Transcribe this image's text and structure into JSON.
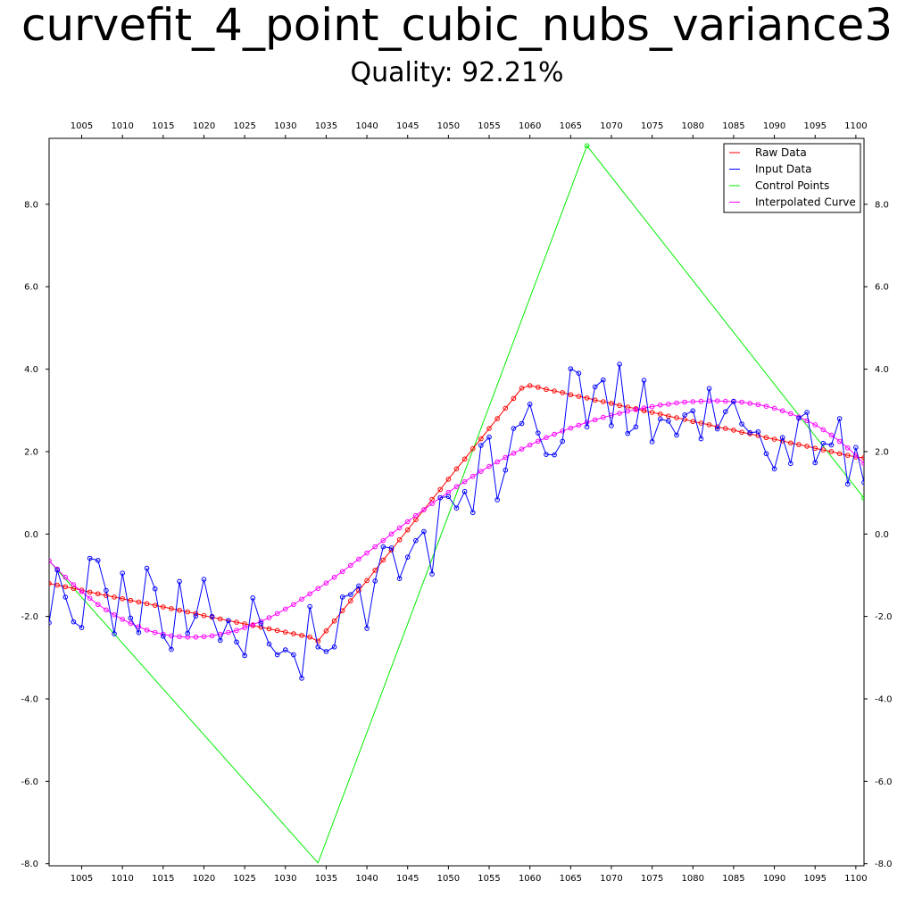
{
  "chart_data": {
    "type": "line",
    "title": "curvefit_4_point_cubic_nubs_variance3",
    "subtitle": "Quality: 92.21%",
    "xlim": [
      1001,
      1101
    ],
    "ylim": [
      -8.05,
      9.6
    ],
    "x_ticks": [
      1005,
      1010,
      1015,
      1020,
      1025,
      1030,
      1035,
      1040,
      1045,
      1050,
      1055,
      1060,
      1065,
      1070,
      1075,
      1080,
      1085,
      1090,
      1095,
      1100
    ],
    "y_ticks": [
      8.0,
      6.0,
      4.0,
      2.0,
      0.0,
      -2.0,
      -4.0,
      -6.0,
      -8.0
    ],
    "y_tick_labels": [
      "8.0",
      "6.0",
      "4.0",
      "2.0",
      "0.0",
      "-2.0",
      "-4.0",
      "-6.0",
      "-8.0"
    ],
    "grid": false,
    "legend_position": "top-right",
    "series": [
      {
        "name": "Raw Data",
        "color": "#ff0000",
        "markers": true,
        "x": [
          1001,
          1002,
          1003,
          1004,
          1005,
          1006,
          1007,
          1008,
          1009,
          1010,
          1011,
          1012,
          1013,
          1014,
          1015,
          1016,
          1017,
          1018,
          1019,
          1020,
          1021,
          1022,
          1023,
          1024,
          1025,
          1026,
          1027,
          1028,
          1029,
          1030,
          1031,
          1032,
          1033,
          1034,
          1035,
          1036,
          1037,
          1038,
          1039,
          1040,
          1041,
          1042,
          1043,
          1044,
          1045,
          1046,
          1047,
          1048,
          1049,
          1050,
          1051,
          1052,
          1053,
          1054,
          1055,
          1056,
          1057,
          1058,
          1059,
          1060,
          1061,
          1062,
          1063,
          1064,
          1065,
          1066,
          1067,
          1068,
          1069,
          1070,
          1071,
          1072,
          1073,
          1074,
          1075,
          1076,
          1077,
          1078,
          1079,
          1080,
          1081,
          1082,
          1083,
          1084,
          1085,
          1086,
          1087,
          1088,
          1089,
          1090,
          1091,
          1092,
          1093,
          1094,
          1095,
          1096,
          1097,
          1098,
          1099,
          1100,
          1101
        ],
        "y": [
          -1.2,
          -1.24,
          -1.28,
          -1.32,
          -1.36,
          -1.41,
          -1.45,
          -1.49,
          -1.53,
          -1.57,
          -1.61,
          -1.65,
          -1.69,
          -1.73,
          -1.77,
          -1.81,
          -1.85,
          -1.89,
          -1.93,
          -1.98,
          -2.02,
          -2.06,
          -2.1,
          -2.14,
          -2.18,
          -2.22,
          -2.26,
          -2.3,
          -2.34,
          -2.38,
          -2.42,
          -2.46,
          -2.5,
          -2.6,
          -2.35,
          -2.11,
          -1.86,
          -1.62,
          -1.37,
          -1.13,
          -0.88,
          -0.63,
          -0.39,
          -0.14,
          0.1,
          0.35,
          0.59,
          0.84,
          1.08,
          1.33,
          1.58,
          1.82,
          2.07,
          2.31,
          2.56,
          2.8,
          3.05,
          3.29,
          3.54,
          3.6,
          3.56,
          3.51,
          3.47,
          3.43,
          3.38,
          3.34,
          3.3,
          3.25,
          3.21,
          3.17,
          3.12,
          3.08,
          3.04,
          2.99,
          2.95,
          2.91,
          2.86,
          2.82,
          2.78,
          2.73,
          2.69,
          2.65,
          2.6,
          2.56,
          2.52,
          2.47,
          2.43,
          2.39,
          2.34,
          2.3,
          2.26,
          2.21,
          2.17,
          2.13,
          2.08,
          2.04,
          2.0,
          1.95,
          1.91,
          1.87,
          1.85
        ]
      },
      {
        "name": "Input Data",
        "color": "#0000ff",
        "markers": true,
        "x": [
          1001,
          1002,
          1003,
          1004,
          1005,
          1006,
          1007,
          1008,
          1009,
          1010,
          1011,
          1012,
          1013,
          1014,
          1015,
          1016,
          1017,
          1018,
          1019,
          1020,
          1021,
          1022,
          1023,
          1024,
          1025,
          1026,
          1027,
          1028,
          1029,
          1030,
          1031,
          1032,
          1033,
          1034,
          1035,
          1036,
          1037,
          1038,
          1039,
          1040,
          1041,
          1042,
          1043,
          1044,
          1045,
          1046,
          1047,
          1048,
          1049,
          1050,
          1051,
          1052,
          1053,
          1054,
          1055,
          1056,
          1057,
          1058,
          1059,
          1060,
          1061,
          1062,
          1063,
          1064,
          1065,
          1066,
          1067,
          1068,
          1069,
          1070,
          1071,
          1072,
          1073,
          1074,
          1075,
          1076,
          1077,
          1078,
          1079,
          1080,
          1081,
          1082,
          1083,
          1084,
          1085,
          1086,
          1087,
          1088,
          1089,
          1090,
          1091,
          1092,
          1093,
          1094,
          1095,
          1096,
          1097,
          1098,
          1099,
          1100,
          1101
        ],
        "y": [
          -2.15,
          -0.87,
          -1.53,
          -2.13,
          -2.27,
          -0.59,
          -0.64,
          -1.37,
          -2.42,
          -0.95,
          -2.04,
          -2.39,
          -0.83,
          -1.33,
          -2.48,
          -2.8,
          -1.15,
          -2.41,
          -1.99,
          -1.1,
          -2.0,
          -2.58,
          -2.1,
          -2.62,
          -2.95,
          -1.55,
          -2.17,
          -2.67,
          -2.93,
          -2.81,
          -2.93,
          -3.5,
          -1.76,
          -2.74,
          -2.85,
          -2.74,
          -1.53,
          -1.47,
          -1.26,
          -2.29,
          -1.14,
          -0.31,
          -0.34,
          -1.08,
          -0.56,
          -0.16,
          0.06,
          -0.97,
          0.88,
          0.91,
          0.63,
          1.03,
          0.52,
          2.15,
          2.35,
          0.83,
          1.55,
          2.56,
          2.68,
          3.15,
          2.45,
          1.93,
          1.92,
          2.25,
          4.01,
          3.9,
          2.6,
          3.57,
          3.74,
          2.63,
          4.12,
          2.44,
          2.6,
          3.73,
          2.24,
          2.79,
          2.74,
          2.4,
          2.89,
          2.99,
          2.31,
          3.53,
          2.55,
          2.97,
          3.22,
          2.67,
          2.46,
          2.48,
          1.95,
          1.58,
          2.34,
          1.71,
          2.81,
          2.95,
          1.73,
          2.2,
          2.16,
          2.8,
          1.21,
          2.1,
          1.25
        ]
      },
      {
        "name": "Control Points",
        "color": "#00ee00",
        "markers": true,
        "marker_indices": [
          0,
          2,
          3
        ],
        "x": [
          1001,
          1034,
          1067,
          1101
        ],
        "y": [
          -0.65,
          -7.98,
          9.42,
          0.87
        ]
      },
      {
        "name": "Interpolated Curve",
        "color": "#ff00ff",
        "markers": true,
        "x": [
          1001,
          1002,
          1003,
          1004,
          1005,
          1006,
          1007,
          1008,
          1009,
          1010,
          1011,
          1012,
          1013,
          1014,
          1015,
          1016,
          1017,
          1018,
          1019,
          1020,
          1021,
          1022,
          1023,
          1024,
          1025,
          1026,
          1027,
          1028,
          1029,
          1030,
          1031,
          1032,
          1033,
          1034,
          1035,
          1036,
          1037,
          1038,
          1039,
          1040,
          1041,
          1042,
          1043,
          1044,
          1045,
          1046,
          1047,
          1048,
          1049,
          1050,
          1051,
          1052,
          1053,
          1054,
          1055,
          1056,
          1057,
          1058,
          1059,
          1060,
          1061,
          1062,
          1063,
          1064,
          1065,
          1066,
          1067,
          1068,
          1069,
          1070,
          1071,
          1072,
          1073,
          1074,
          1075,
          1076,
          1077,
          1078,
          1079,
          1080,
          1081,
          1082,
          1083,
          1084,
          1085,
          1086,
          1087,
          1088,
          1089,
          1090,
          1091,
          1092,
          1093,
          1094,
          1095,
          1096,
          1097,
          1098,
          1099,
          1100,
          1101
        ],
        "y": [
          -0.65,
          -0.85,
          -1.05,
          -1.23,
          -1.4,
          -1.56,
          -1.71,
          -1.84,
          -1.96,
          -2.07,
          -2.17,
          -2.25,
          -2.33,
          -2.39,
          -2.43,
          -2.47,
          -2.49,
          -2.5,
          -2.5,
          -2.49,
          -2.47,
          -2.43,
          -2.39,
          -2.34,
          -2.27,
          -2.2,
          -2.12,
          -2.03,
          -1.93,
          -1.82,
          -1.71,
          -1.58,
          -1.45,
          -1.32,
          -1.19,
          -1.05,
          -0.91,
          -0.76,
          -0.61,
          -0.46,
          -0.31,
          -0.16,
          0.0,
          0.15,
          0.3,
          0.45,
          0.59,
          0.74,
          0.88,
          1.01,
          1.15,
          1.27,
          1.4,
          1.52,
          1.64,
          1.75,
          1.86,
          1.96,
          2.06,
          2.16,
          2.25,
          2.34,
          2.42,
          2.5,
          2.57,
          2.64,
          2.71,
          2.77,
          2.83,
          2.88,
          2.93,
          2.98,
          3.02,
          3.06,
          3.09,
          3.13,
          3.15,
          3.18,
          3.2,
          3.21,
          3.22,
          3.23,
          3.23,
          3.22,
          3.21,
          3.2,
          3.17,
          3.14,
          3.1,
          3.05,
          2.99,
          2.92,
          2.84,
          2.75,
          2.65,
          2.53,
          2.4,
          2.25,
          2.09,
          1.91,
          1.71
        ]
      }
    ]
  }
}
